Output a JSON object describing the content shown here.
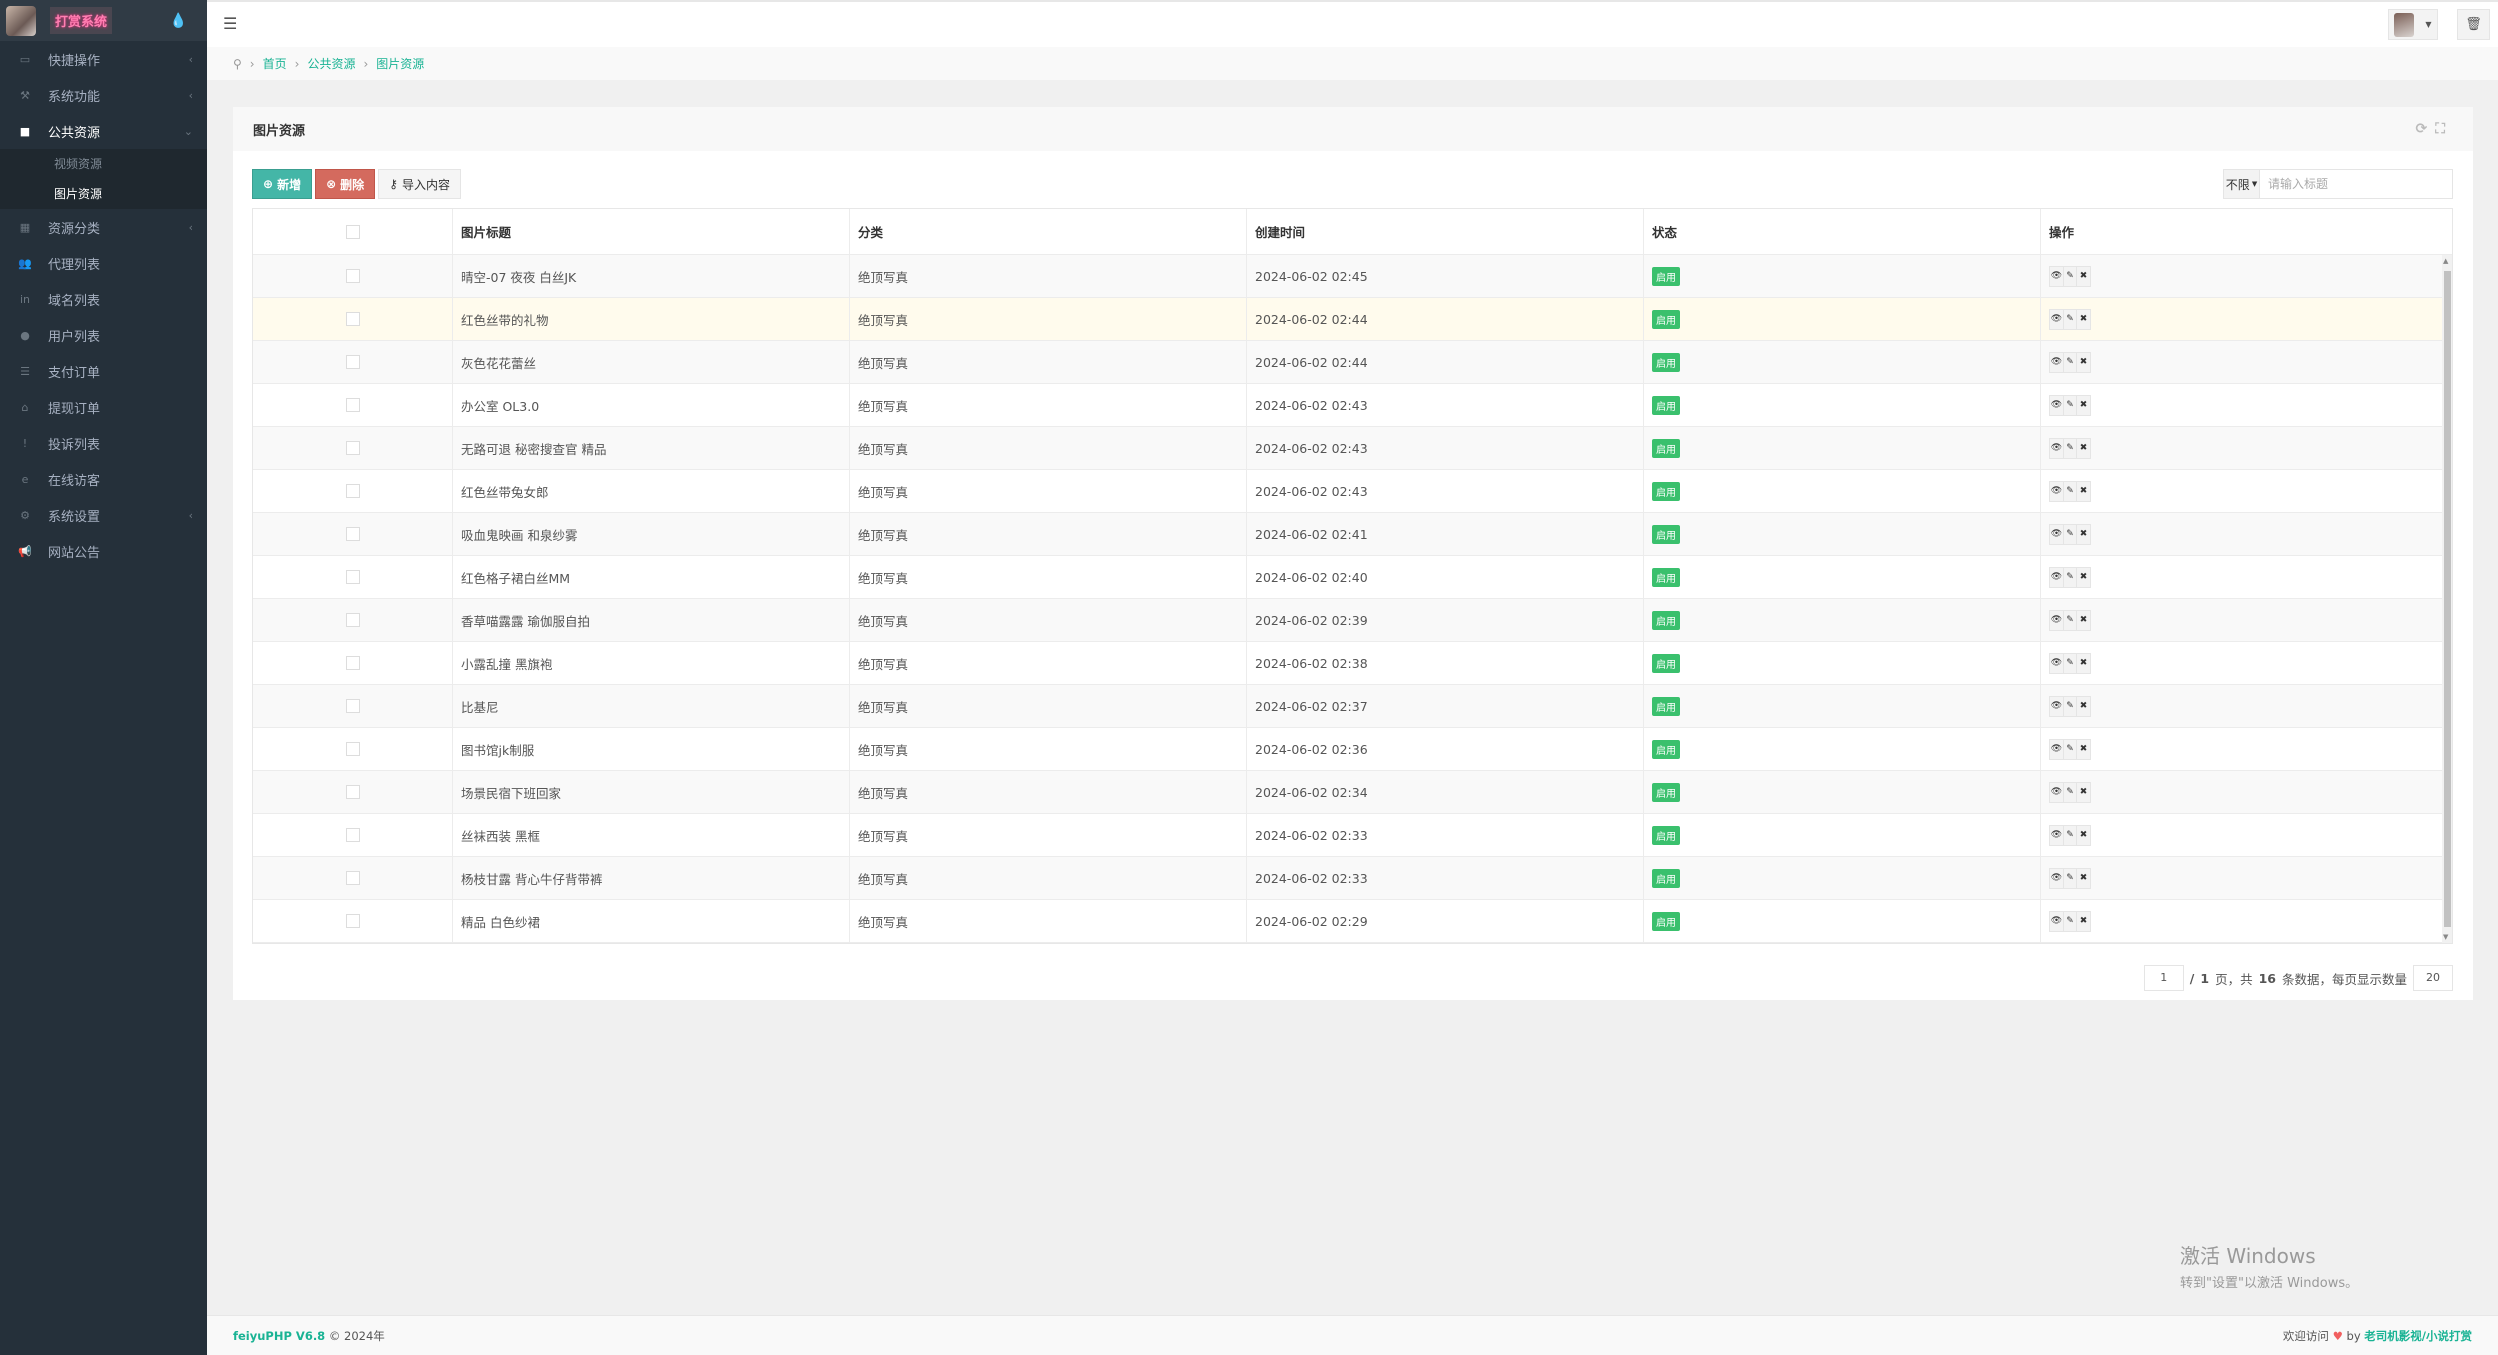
{
  "sidebar": {
    "brand": "打赏系统",
    "items": [
      {
        "label": "快捷操作",
        "icon": "folder-open-icon",
        "ic": "▭",
        "arrow": "‹"
      },
      {
        "label": "系统功能",
        "icon": "wrench-icon",
        "ic": "⚒",
        "arrow": "‹"
      },
      {
        "label": "公共资源",
        "icon": "video-camera-icon",
        "ic": "■",
        "arrow": "⌄"
      },
      {
        "label": "资源分类",
        "icon": "th-large-icon",
        "ic": "▦",
        "arrow": "‹"
      },
      {
        "label": "代理列表",
        "icon": "users-icon",
        "ic": "👥",
        "arrow": ""
      },
      {
        "label": "域名列表",
        "icon": "linkedin-icon",
        "ic": "in",
        "arrow": ""
      },
      {
        "label": "用户列表",
        "icon": "user-icon",
        "ic": "●",
        "arrow": ""
      },
      {
        "label": "支付订单",
        "icon": "database-icon",
        "ic": "☰",
        "arrow": ""
      },
      {
        "label": "提现订单",
        "icon": "bank-icon",
        "ic": "⌂",
        "arrow": ""
      },
      {
        "label": "投诉列表",
        "icon": "exclamation-circle-icon",
        "ic": "!",
        "arrow": ""
      },
      {
        "label": "在线访客",
        "icon": "internet-explorer-icon",
        "ic": "e",
        "arrow": ""
      },
      {
        "label": "系统设置",
        "icon": "gear-icon",
        "ic": "⚙",
        "arrow": "‹"
      },
      {
        "label": "网站公告",
        "icon": "bullhorn-icon",
        "ic": "📢",
        "arrow": ""
      }
    ],
    "sub": [
      "视频资源",
      "图片资源"
    ]
  },
  "breadcrumb": [
    "首页",
    "公共资源",
    "图片资源"
  ],
  "panel": {
    "title": "图片资源"
  },
  "toolbar": {
    "add": "新增",
    "del": "删除",
    "imp": "导入内容"
  },
  "search": {
    "filter": "不限",
    "placeholder": "请输入标题"
  },
  "table": {
    "headers": [
      "图片标题",
      "分类",
      "创建时间",
      "状态",
      "操作"
    ],
    "rows": [
      {
        "title": "晴空-07 夜夜 白丝JK",
        "cat": "绝顶写真",
        "time": "2024-06-02 02:45",
        "status": "启用"
      },
      {
        "title": "红色丝带的礼物",
        "cat": "绝顶写真",
        "time": "2024-06-02 02:44",
        "status": "启用"
      },
      {
        "title": "灰色花花蕾丝",
        "cat": "绝顶写真",
        "time": "2024-06-02 02:44",
        "status": "启用"
      },
      {
        "title": "办公室 OL3.0",
        "cat": "绝顶写真",
        "time": "2024-06-02 02:43",
        "status": "启用"
      },
      {
        "title": "无路可退 秘密搜查官 精品",
        "cat": "绝顶写真",
        "time": "2024-06-02 02:43",
        "status": "启用"
      },
      {
        "title": "红色丝带兔女郎",
        "cat": "绝顶写真",
        "time": "2024-06-02 02:43",
        "status": "启用"
      },
      {
        "title": "吸血鬼映画 和泉纱雾",
        "cat": "绝顶写真",
        "time": "2024-06-02 02:41",
        "status": "启用"
      },
      {
        "title": "红色格子裙白丝MM",
        "cat": "绝顶写真",
        "time": "2024-06-02 02:40",
        "status": "启用"
      },
      {
        "title": "香草喵露露 瑜伽服自拍",
        "cat": "绝顶写真",
        "time": "2024-06-02 02:39",
        "status": "启用"
      },
      {
        "title": "小露乱撞 黑旗袍",
        "cat": "绝顶写真",
        "time": "2024-06-02 02:38",
        "status": "启用"
      },
      {
        "title": "比基尼",
        "cat": "绝顶写真",
        "time": "2024-06-02 02:37",
        "status": "启用"
      },
      {
        "title": "图书馆jk制服",
        "cat": "绝顶写真",
        "time": "2024-06-02 02:36",
        "status": "启用"
      },
      {
        "title": "场景民宿下班回家",
        "cat": "绝顶写真",
        "time": "2024-06-02 02:34",
        "status": "启用"
      },
      {
        "title": "丝袜西装 黑框",
        "cat": "绝顶写真",
        "time": "2024-06-02 02:33",
        "status": "启用"
      },
      {
        "title": "杨枝甘露 背心牛仔背带裤",
        "cat": "绝顶写真",
        "time": "2024-06-02 02:33",
        "status": "启用"
      },
      {
        "title": "精品 白色纱裙",
        "cat": "绝顶写真",
        "time": "2024-06-02 02:29",
        "status": "启用"
      }
    ]
  },
  "pager": {
    "page": "1",
    "sep": "/",
    "pages": "1",
    "t1": "页，共",
    "total": "16",
    "t2": "条数据，每页显示数量",
    "size": "20"
  },
  "footer": {
    "brand": "feiyuPHP V6.8",
    "copy": "© 2024年",
    "welcome": "欢迎访问",
    "by": "by",
    "link": "老司机影视/小说打赏"
  },
  "watermark": {
    "line1": "激活 Windows",
    "line2": "转到\"设置\"以激活 Windows。"
  },
  "colors": {
    "primary": "#44b6a7",
    "danger": "#d46a5e",
    "success": "#3ac06d",
    "sidebar": "#25303a",
    "link": "#1ab394"
  }
}
